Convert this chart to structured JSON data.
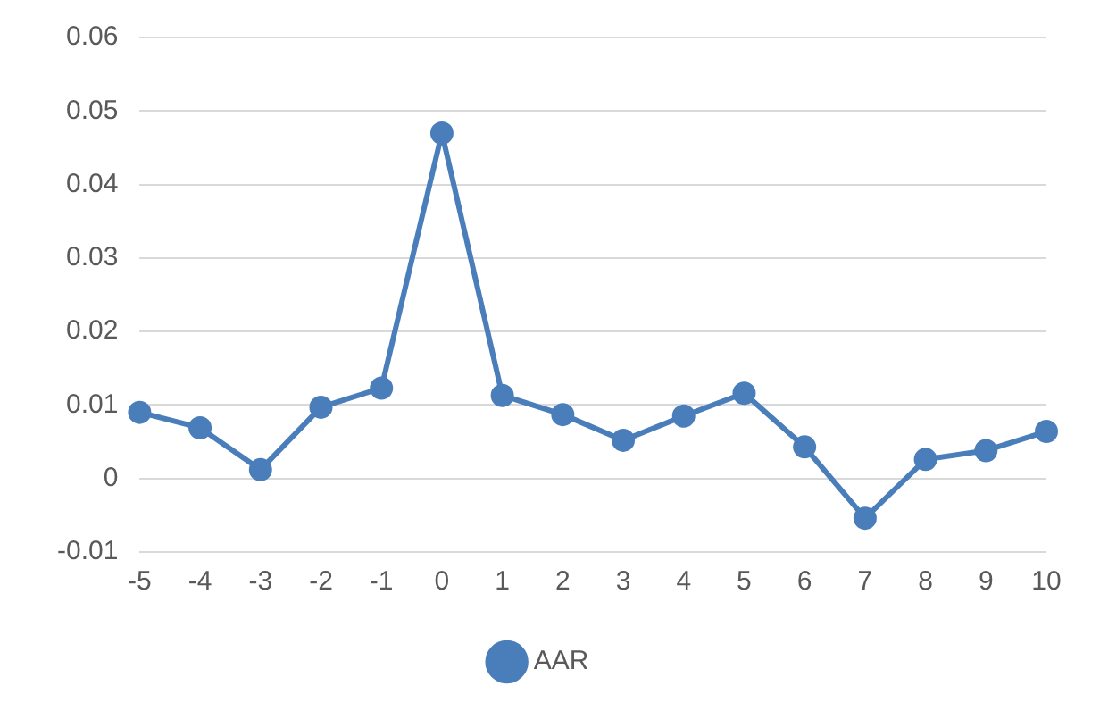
{
  "chart_data": {
    "type": "line",
    "categories": [
      "-5",
      "-4",
      "-3",
      "-2",
      "-1",
      "0",
      "1",
      "2",
      "3",
      "4",
      "5",
      "6",
      "7",
      "8",
      "9",
      "10"
    ],
    "series": [
      {
        "name": "AAR",
        "color": "#4a7ebb",
        "values": [
          0.009,
          0.0069,
          0.0012,
          0.0097,
          0.0123,
          0.047,
          0.0113,
          0.0087,
          0.0052,
          0.0085,
          0.0116,
          0.0043,
          -0.0054,
          0.0026,
          0.0038,
          0.0064
        ]
      }
    ],
    "ylim": [
      -0.01,
      0.06
    ],
    "yticks": [
      -0.01,
      0,
      0.01,
      0.02,
      0.03,
      0.04,
      0.05,
      0.06
    ],
    "grid": "y",
    "legend": "bottom",
    "marker": "circle",
    "line_style": "solid"
  }
}
